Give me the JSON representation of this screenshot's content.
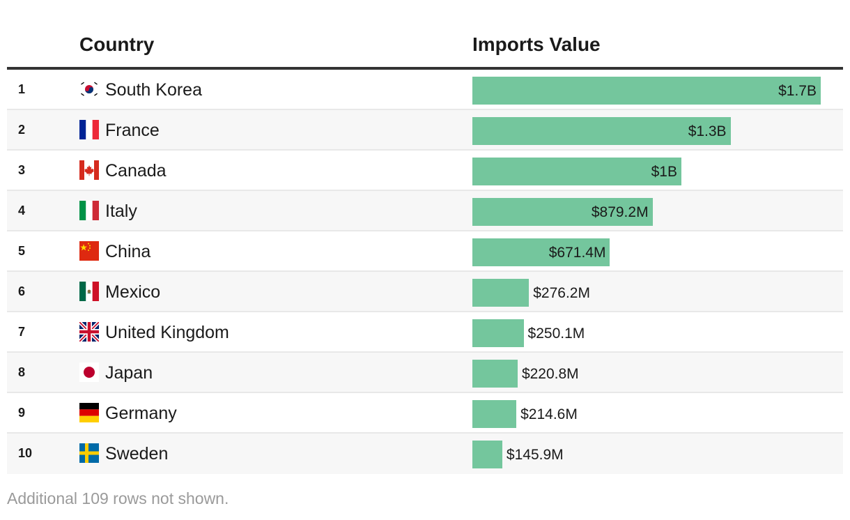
{
  "table": {
    "headers": {
      "country": "Country",
      "value": "Imports Value"
    },
    "footnote": "Additional 109 rows not shown."
  },
  "chart_data": {
    "type": "bar",
    "orientation": "horizontal",
    "title": "",
    "xlabel": "Imports Value",
    "ylabel": "Country",
    "xlim": [
      0,
      1.7
    ],
    "units": "billions USD",
    "categories": [
      "South Korea",
      "France",
      "Canada",
      "Italy",
      "China",
      "Mexico",
      "United Kingdom",
      "Japan",
      "Germany",
      "Sweden"
    ],
    "ranks": [
      "1",
      "2",
      "3",
      "4",
      "5",
      "6",
      "7",
      "8",
      "9",
      "10"
    ],
    "values": [
      1.7,
      1.26,
      1.02,
      0.8792,
      0.6714,
      0.2762,
      0.2501,
      0.2208,
      0.2146,
      0.1459
    ],
    "labels": [
      "$1.7B",
      "$1.3B",
      "$1B",
      "$879.2M",
      "$671.4M",
      "$276.2M",
      "$250.1M",
      "$220.8M",
      "$214.6M",
      "$145.9M"
    ],
    "flags": [
      "kr-flag-icon",
      "fr-flag-icon",
      "ca-flag-icon",
      "it-flag-icon",
      "cn-flag-icon",
      "mx-flag-icon",
      "gb-flag-icon",
      "jp-flag-icon",
      "de-flag-icon",
      "se-flag-icon"
    ],
    "bar_color": "#74c69d"
  }
}
